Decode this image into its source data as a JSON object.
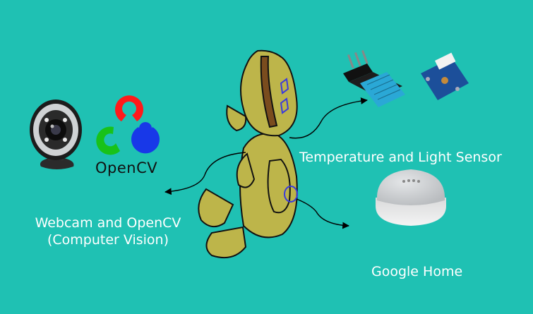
{
  "labels": {
    "webcam": "Webcam and OpenCV",
    "webcam_sub": "(Computer Vision)",
    "sensor": "Temperature and Light Sensor",
    "google": "Google Home"
  },
  "logo": {
    "text": "OpenCV"
  },
  "colors": {
    "background": "#1fc1b3",
    "bear_fill": "#bdb54a",
    "opencv_red": "#ff1a1a",
    "opencv_green": "#18c21a",
    "opencv_blue": "#1838e8",
    "sensor_blue": "#2aa8d6",
    "board_blue": "#1c4f9a"
  },
  "icons": [
    "webcam-icon",
    "opencv-logo",
    "dht-sensor-icon",
    "light-sensor-icon",
    "google-home-icon",
    "teddy-bear-drawing"
  ]
}
